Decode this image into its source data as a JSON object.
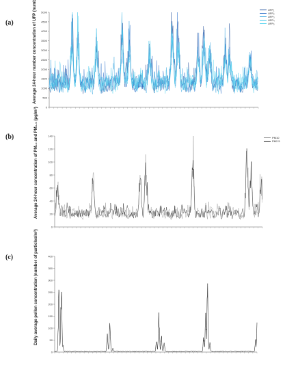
{
  "chart_data": [
    {
      "type": "line",
      "panel_label": "(a)",
      "ylabel": "Average 24-hour number concentration of UFP (number/cm³)",
      "ylim": [
        0,
        5000
      ],
      "yticks": [
        0,
        500,
        1000,
        1500,
        2000,
        2500,
        3000,
        3500,
        4000,
        4500,
        5000
      ],
      "series": [
        {
          "name": "UFP₁",
          "color": "#1f4e9a"
        },
        {
          "name": "UFP₂",
          "color": "#2a6fc9"
        },
        {
          "name": "UFP₃",
          "color": "#33a3e0"
        },
        {
          "name": "UFP₄",
          "color": "#3cc4e8"
        },
        {
          "name": "UFP₅",
          "color": "#5fd6f0"
        }
      ],
      "x_range_days": 1460,
      "peaks": [
        {
          "day": 160,
          "value": 4200
        },
        {
          "day": 200,
          "value": 4300
        },
        {
          "day": 330,
          "value": 3600
        },
        {
          "day": 510,
          "value": 4200
        },
        {
          "day": 560,
          "value": 3500
        },
        {
          "day": 700,
          "value": 3300
        },
        {
          "day": 860,
          "value": 4750
        },
        {
          "day": 900,
          "value": 4400
        },
        {
          "day": 1040,
          "value": 3700
        },
        {
          "day": 1080,
          "value": 4450
        },
        {
          "day": 1120,
          "value": 3300
        },
        {
          "day": 1230,
          "value": 3700
        },
        {
          "day": 1260,
          "value": 3300
        },
        {
          "day": 1400,
          "value": 3200
        }
      ],
      "baseline_range": [
        600,
        1800
      ],
      "legend_position": "top-right"
    },
    {
      "type": "line",
      "panel_label": "(b)",
      "ylabel": "Average 24-hour concentration of PM₁₀ and PM₂.₅ (μg/m³)",
      "ylim": [
        0,
        140
      ],
      "yticks": [
        0,
        20,
        40,
        60,
        80,
        100,
        120,
        140
      ],
      "series": [
        {
          "name": "PM10",
          "color": "#888888"
        },
        {
          "name": "PM2.5",
          "color": "#111111"
        }
      ],
      "x_range_days": 1460,
      "peaks": [
        {
          "day": 20,
          "value": 78
        },
        {
          "day": 270,
          "value": 100
        },
        {
          "day": 600,
          "value": 92
        },
        {
          "day": 640,
          "value": 118
        },
        {
          "day": 970,
          "value": 114
        },
        {
          "day": 1350,
          "value": 126
        },
        {
          "day": 1380,
          "value": 110
        },
        {
          "day": 1450,
          "value": 78
        }
      ],
      "baseline_range": [
        10,
        30
      ],
      "legend_position": "top-right"
    },
    {
      "type": "line",
      "panel_label": "(c)",
      "ylabel": "Daily average pollen concentration (number of particles/m³)",
      "ylim": [
        0,
        400
      ],
      "yticks": [
        0,
        50,
        100,
        150,
        200,
        250,
        300,
        350,
        400
      ],
      "series": [
        {
          "name": "",
          "color": "#111111"
        }
      ],
      "x_range_days": 1460,
      "peaks": [
        {
          "day": 30,
          "value": 285
        },
        {
          "day": 48,
          "value": 320
        },
        {
          "day": 60,
          "value": 30
        },
        {
          "day": 380,
          "value": 80
        },
        {
          "day": 398,
          "value": 170
        },
        {
          "day": 420,
          "value": 20
        },
        {
          "day": 735,
          "value": 60
        },
        {
          "day": 752,
          "value": 205
        },
        {
          "day": 770,
          "value": 80
        },
        {
          "day": 790,
          "value": 40
        },
        {
          "day": 1075,
          "value": 80
        },
        {
          "day": 1090,
          "value": 185
        },
        {
          "day": 1103,
          "value": 325
        },
        {
          "day": 1120,
          "value": 45
        },
        {
          "day": 1450,
          "value": 60
        },
        {
          "day": 1462,
          "value": 170
        },
        {
          "day": 1475,
          "value": 160
        }
      ],
      "baseline_range": [
        0,
        5
      ]
    }
  ]
}
